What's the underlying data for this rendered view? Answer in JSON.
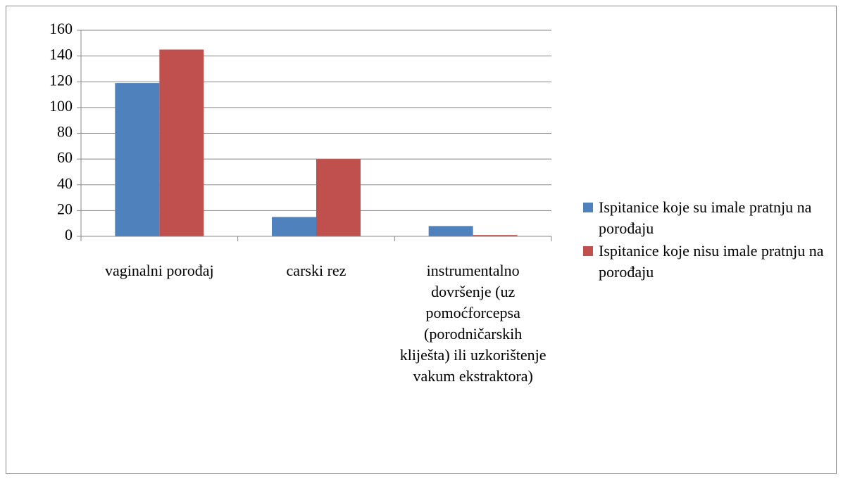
{
  "chart_data": {
    "type": "bar",
    "categories": [
      "vaginalni porođaj",
      "carski rez",
      "instrumentalno dovršenje (uz pomoćforcepsa (porodničarskih kliješta) ili uzkorištenje vakum ekstraktora)"
    ],
    "series": [
      {
        "name": "Ispitanice koje su imale pratnju na porođaju",
        "color": "#4f81bd",
        "values": [
          119,
          15,
          8
        ]
      },
      {
        "name": "Ispitanice koje nisu imale pratnju na porođaju",
        "color": "#c0504d",
        "values": [
          145,
          60,
          1
        ]
      }
    ],
    "ylim": [
      0,
      160
    ],
    "yticks": [
      0,
      20,
      40,
      60,
      80,
      100,
      120,
      140,
      160
    ],
    "grid": true,
    "legend": "right"
  }
}
